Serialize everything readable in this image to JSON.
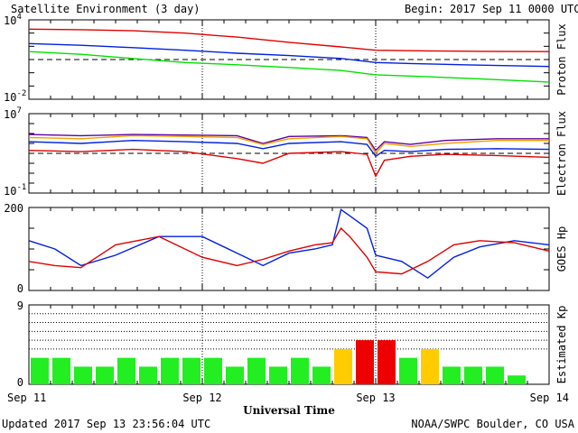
{
  "header": {
    "title": "Satellite Environment (3 day)",
    "begin_label": "Begin:",
    "begin_value": "2017 Sep 11 0000 UTC"
  },
  "footer": {
    "updated": "Updated 2017 Sep 13 23:56:04 UTC",
    "credit": "NOAA/SWPC Boulder, CO USA"
  },
  "x_axis": {
    "label": "Universal Time",
    "ticks": [
      "Sep 11",
      "Sep 12",
      "Sep 13",
      "Sep 14"
    ],
    "range_days": [
      0,
      3
    ]
  },
  "colors": {
    "red": "#e00000",
    "blue": "#0020e0",
    "green": "#00e000",
    "purple": "#6000a0",
    "orange": "#f0a000",
    "kp_green": "#22ee22",
    "kp_yellow": "#ffcc00",
    "kp_red": "#ee0000"
  },
  "chart_data": [
    {
      "type": "line",
      "ylabel": "Proton Flux",
      "yscale": "log",
      "ylim": [
        0.01,
        10000
      ],
      "ytick_labels": [
        {
          "base": "10",
          "exp": "4",
          "value": 10000
        },
        {
          "base": "10",
          "exp": "-2",
          "value": 0.01
        }
      ],
      "threshold": 10,
      "series": [
        {
          "color": "red",
          "x": [
            0,
            0.3,
            0.6,
            0.9,
            1.2,
            1.5,
            1.8,
            2.0,
            2.3,
            2.6,
            3.0
          ],
          "y": [
            2000,
            1800,
            1500,
            1000,
            500,
            200,
            90,
            50,
            45,
            42,
            40
          ]
        },
        {
          "color": "blue",
          "x": [
            0,
            0.3,
            0.6,
            0.9,
            1.2,
            1.5,
            1.8,
            2.0,
            2.2,
            2.5,
            3.0
          ],
          "y": [
            160,
            120,
            80,
            50,
            30,
            20,
            12,
            6,
            5,
            4,
            3
          ]
        },
        {
          "color": "green",
          "x": [
            0,
            0.3,
            0.6,
            0.9,
            1.2,
            1.5,
            1.8,
            2.0,
            2.3,
            2.6,
            3.0
          ],
          "y": [
            40,
            25,
            12,
            6,
            4,
            2.5,
            1.5,
            0.7,
            0.5,
            0.35,
            0.2
          ]
        }
      ]
    },
    {
      "type": "line",
      "ylabel": "Electron Flux",
      "yscale": "log",
      "ylim": [
        0.1,
        10000000
      ],
      "ytick_labels": [
        {
          "base": "10",
          "exp": "7",
          "value": 10000000
        },
        {
          "base": "10",
          "exp": "-1",
          "value": 0.1
        }
      ],
      "threshold": 1000,
      "series": [
        {
          "color": "purple",
          "x": [
            0,
            0.3,
            0.6,
            0.9,
            1.2,
            1.35,
            1.5,
            1.8,
            1.95,
            2.0,
            2.05,
            2.2,
            2.4,
            2.7,
            3.0
          ],
          "y": [
            80000,
            60000,
            80000,
            70000,
            60000,
            10000,
            50000,
            60000,
            40000,
            2000,
            15000,
            8000,
            20000,
            30000,
            30000
          ]
        },
        {
          "color": "orange",
          "x": [
            0,
            0.3,
            0.6,
            0.9,
            1.2,
            1.35,
            1.5,
            1.8,
            1.95,
            2.0,
            2.05,
            2.2,
            2.4,
            2.7,
            3.0
          ],
          "y": [
            40000,
            30000,
            60000,
            50000,
            40000,
            8000,
            30000,
            50000,
            30000,
            1000,
            10000,
            5000,
            10000,
            20000,
            20000
          ]
        },
        {
          "color": "blue",
          "x": [
            0,
            0.3,
            0.6,
            0.9,
            1.2,
            1.35,
            1.5,
            1.8,
            1.95,
            2.0,
            2.05,
            2.2,
            2.4,
            2.7,
            3.0
          ],
          "y": [
            15000,
            10000,
            20000,
            15000,
            10000,
            3000,
            10000,
            15000,
            8000,
            500,
            2000,
            1500,
            2500,
            3000,
            2500
          ]
        },
        {
          "color": "red",
          "x": [
            0,
            0.3,
            0.6,
            0.9,
            1.2,
            1.35,
            1.5,
            1.8,
            1.95,
            2.0,
            2.05,
            2.2,
            2.4,
            2.7,
            3.0
          ],
          "y": [
            2000,
            1500,
            2500,
            1500,
            300,
            100,
            1000,
            1500,
            800,
            5,
            200,
            500,
            800,
            600,
            400
          ]
        }
      ]
    },
    {
      "type": "line",
      "ylabel": "GOES Hp",
      "yscale": "linear",
      "ylim": [
        0,
        200
      ],
      "ytick_labels": [
        {
          "base": "200",
          "exp": "",
          "value": 200
        },
        {
          "base": "0",
          "exp": "",
          "value": 0
        }
      ],
      "series": [
        {
          "color": "blue",
          "x": [
            0,
            0.15,
            0.3,
            0.5,
            0.75,
            1.0,
            1.2,
            1.35,
            1.5,
            1.65,
            1.75,
            1.8,
            1.85,
            1.95,
            2.0,
            2.15,
            2.3,
            2.45,
            2.6,
            2.8,
            3.0
          ],
          "y": [
            120,
            100,
            60,
            85,
            130,
            130,
            90,
            60,
            90,
            100,
            110,
            195,
            180,
            150,
            85,
            70,
            30,
            80,
            105,
            120,
            110
          ]
        },
        {
          "color": "red",
          "x": [
            0,
            0.15,
            0.3,
            0.5,
            0.75,
            1.0,
            1.2,
            1.35,
            1.5,
            1.65,
            1.75,
            1.8,
            1.85,
            1.95,
            2.0,
            2.15,
            2.3,
            2.45,
            2.6,
            2.8,
            3.0
          ],
          "y": [
            70,
            60,
            55,
            110,
            130,
            80,
            60,
            75,
            95,
            110,
            115,
            150,
            130,
            80,
            45,
            40,
            70,
            110,
            120,
            115,
            95
          ]
        }
      ]
    },
    {
      "type": "bar",
      "ylabel": "Estimated Kp",
      "ylim": [
        0,
        9
      ],
      "ytick_labels": [
        {
          "base": "9",
          "exp": "",
          "value": 9
        },
        {
          "base": "0",
          "exp": "",
          "value": 0
        }
      ],
      "reference_lines": [
        4,
        5,
        6,
        7,
        8,
        9
      ],
      "bar_width_days": 0.125,
      "bars": [
        {
          "x": 0,
          "value": 3,
          "color": "kp_green"
        },
        {
          "x": 0.125,
          "value": 3,
          "color": "kp_green"
        },
        {
          "x": 0.25,
          "value": 2,
          "color": "kp_green"
        },
        {
          "x": 0.375,
          "value": 2,
          "color": "kp_green"
        },
        {
          "x": 0.5,
          "value": 3,
          "color": "kp_green"
        },
        {
          "x": 0.625,
          "value": 2,
          "color": "kp_green"
        },
        {
          "x": 0.75,
          "value": 3,
          "color": "kp_green"
        },
        {
          "x": 0.875,
          "value": 3,
          "color": "kp_green"
        },
        {
          "x": 1.0,
          "value": 3,
          "color": "kp_green"
        },
        {
          "x": 1.125,
          "value": 2,
          "color": "kp_green"
        },
        {
          "x": 1.25,
          "value": 3,
          "color": "kp_green"
        },
        {
          "x": 1.375,
          "value": 2,
          "color": "kp_green"
        },
        {
          "x": 1.5,
          "value": 3,
          "color": "kp_green"
        },
        {
          "x": 1.625,
          "value": 2,
          "color": "kp_green"
        },
        {
          "x": 1.75,
          "value": 4,
          "color": "kp_yellow"
        },
        {
          "x": 1.875,
          "value": 5,
          "color": "kp_red"
        },
        {
          "x": 2.0,
          "value": 5,
          "color": "kp_red"
        },
        {
          "x": 2.125,
          "value": 3,
          "color": "kp_green"
        },
        {
          "x": 2.25,
          "value": 4,
          "color": "kp_yellow"
        },
        {
          "x": 2.375,
          "value": 2,
          "color": "kp_green"
        },
        {
          "x": 2.5,
          "value": 2,
          "color": "kp_green"
        },
        {
          "x": 2.625,
          "value": 2,
          "color": "kp_green"
        },
        {
          "x": 2.75,
          "value": 1,
          "color": "kp_green"
        }
      ]
    }
  ]
}
